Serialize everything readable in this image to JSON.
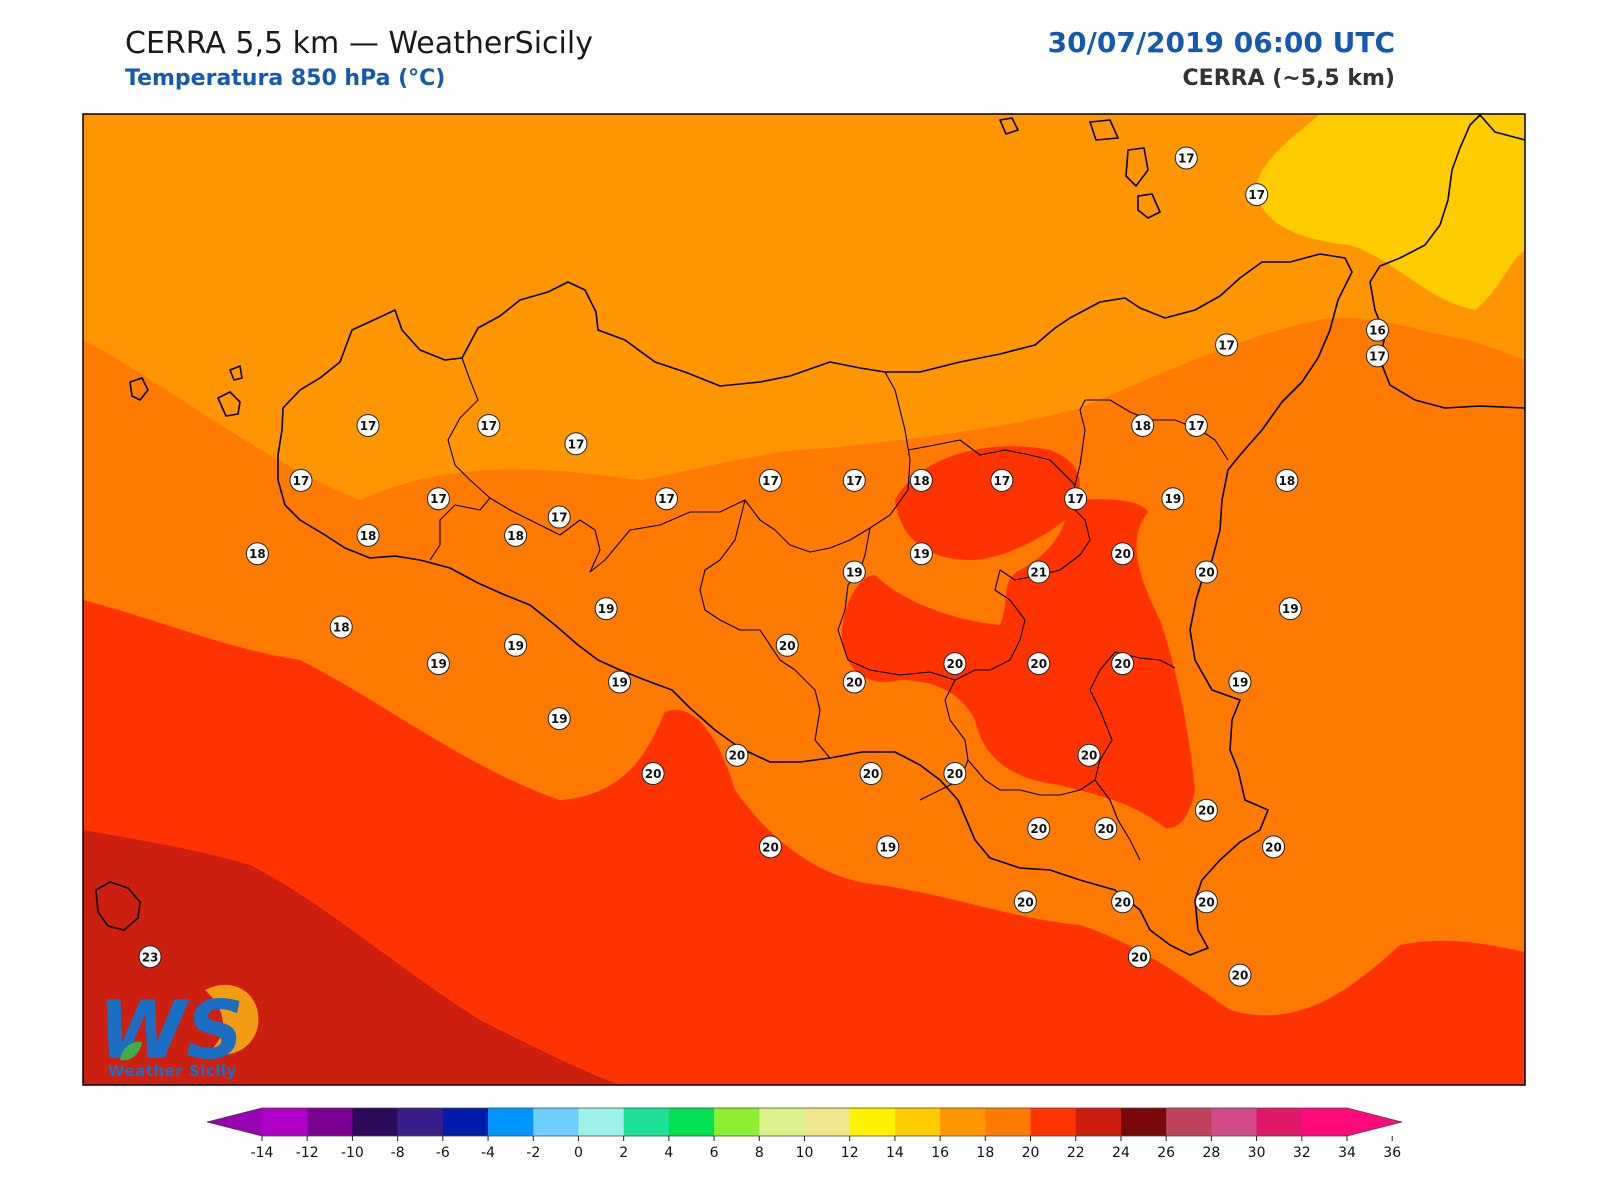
{
  "header": {
    "title": "CERRA 5,5 km — WeatherSicily",
    "subtitle": "Temperatura 850 hPa (°C)",
    "datetime": "30/07/2019 06:00 UTC",
    "model": "CERRA (~5,5 km)"
  },
  "logo": {
    "letters": "WS",
    "name": "Weather Sicily",
    "colors": {
      "blue": "#1a6fc4",
      "orange": "#f39c12",
      "green": "#3fae49"
    }
  },
  "fill_colors": {
    "t16_18": "#ffcc00",
    "t18_20": "#ff9500",
    "t20_22": "#ff7a00",
    "t22_24": "#ff3300",
    "t24_26": "#cc1f10"
  },
  "colorbar": {
    "ticks": [
      "-14",
      "-12",
      "-10",
      "-8",
      "-6",
      "-4",
      "-2",
      "0",
      "2",
      "4",
      "6",
      "8",
      "10",
      "12",
      "14",
      "16",
      "18",
      "20",
      "22",
      "24",
      "26",
      "28",
      "30",
      "32",
      "34",
      "36"
    ],
    "colors": [
      "#b000c8",
      "#7a0090",
      "#2c0a5a",
      "#3a1e8a",
      "#001ca8",
      "#0096ff",
      "#6ecfff",
      "#9ff0e8",
      "#1de096",
      "#00e050",
      "#8cf032",
      "#dcf08c",
      "#f0e68c",
      "#fff200",
      "#ffcc00",
      "#ff9500",
      "#ff7a00",
      "#ff3300",
      "#cc1f10",
      "#7a0a0a",
      "#c0425a",
      "#d24a8a",
      "#e0186a",
      "#ff0a78"
    ],
    "under_color": "#9a00b4",
    "over_color": "#ff0a78"
  },
  "points": [
    {
      "v": "17",
      "x": 15.04,
      "y": 38.98
    },
    {
      "v": "17",
      "x": 15.25,
      "y": 38.88
    },
    {
      "v": "16",
      "x": 15.61,
      "y": 38.51
    },
    {
      "v": "17",
      "x": 15.16,
      "y": 38.47
    },
    {
      "v": "17",
      "x": 15.61,
      "y": 38.44
    },
    {
      "v": "17",
      "x": 12.6,
      "y": 38.25
    },
    {
      "v": "17",
      "x": 12.96,
      "y": 38.25
    },
    {
      "v": "17",
      "x": 13.22,
      "y": 38.2
    },
    {
      "v": "18",
      "x": 14.91,
      "y": 38.25
    },
    {
      "v": "17",
      "x": 15.07,
      "y": 38.25
    },
    {
      "v": "17",
      "x": 12.4,
      "y": 38.1
    },
    {
      "v": "17",
      "x": 12.81,
      "y": 38.05
    },
    {
      "v": "17",
      "x": 13.49,
      "y": 38.05
    },
    {
      "v": "17",
      "x": 13.8,
      "y": 38.1
    },
    {
      "v": "17",
      "x": 14.05,
      "y": 38.1
    },
    {
      "v": "18",
      "x": 14.25,
      "y": 38.1
    },
    {
      "v": "17",
      "x": 14.49,
      "y": 38.1
    },
    {
      "v": "17",
      "x": 14.71,
      "y": 38.05
    },
    {
      "v": "19",
      "x": 15.0,
      "y": 38.05
    },
    {
      "v": "18",
      "x": 15.34,
      "y": 38.1
    },
    {
      "v": "17",
      "x": 13.17,
      "y": 38.0
    },
    {
      "v": "18",
      "x": 12.27,
      "y": 37.9
    },
    {
      "v": "18",
      "x": 12.6,
      "y": 37.95
    },
    {
      "v": "18",
      "x": 13.04,
      "y": 37.95
    },
    {
      "v": "19",
      "x": 14.05,
      "y": 37.85
    },
    {
      "v": "19",
      "x": 14.25,
      "y": 37.9
    },
    {
      "v": "21",
      "x": 14.6,
      "y": 37.85
    },
    {
      "v": "20",
      "x": 14.85,
      "y": 37.9
    },
    {
      "v": "20",
      "x": 15.1,
      "y": 37.85
    },
    {
      "v": "19",
      "x": 15.35,
      "y": 37.75
    },
    {
      "v": "19",
      "x": 13.31,
      "y": 37.75
    },
    {
      "v": "18",
      "x": 12.52,
      "y": 37.7
    },
    {
      "v": "19",
      "x": 13.04,
      "y": 37.65
    },
    {
      "v": "20",
      "x": 13.85,
      "y": 37.65
    },
    {
      "v": "19",
      "x": 12.81,
      "y": 37.6
    },
    {
      "v": "20",
      "x": 14.35,
      "y": 37.6
    },
    {
      "v": "20",
      "x": 14.6,
      "y": 37.6
    },
    {
      "v": "20",
      "x": 14.85,
      "y": 37.6
    },
    {
      "v": "19",
      "x": 15.2,
      "y": 37.55
    },
    {
      "v": "19",
      "x": 13.35,
      "y": 37.55
    },
    {
      "v": "20",
      "x": 14.05,
      "y": 37.55
    },
    {
      "v": "19",
      "x": 13.17,
      "y": 37.45
    },
    {
      "v": "20",
      "x": 13.7,
      "y": 37.35
    },
    {
      "v": "20",
      "x": 14.75,
      "y": 37.35
    },
    {
      "v": "20",
      "x": 13.45,
      "y": 37.3
    },
    {
      "v": "20",
      "x": 14.1,
      "y": 37.3
    },
    {
      "v": "20",
      "x": 14.35,
      "y": 37.3
    },
    {
      "v": "20",
      "x": 15.1,
      "y": 37.2
    },
    {
      "v": "20",
      "x": 14.6,
      "y": 37.15
    },
    {
      "v": "20",
      "x": 14.8,
      "y": 37.15
    },
    {
      "v": "20",
      "x": 13.8,
      "y": 37.1
    },
    {
      "v": "19",
      "x": 14.15,
      "y": 37.1
    },
    {
      "v": "20",
      "x": 15.3,
      "y": 37.1
    },
    {
      "v": "20",
      "x": 14.56,
      "y": 36.95
    },
    {
      "v": "20",
      "x": 14.85,
      "y": 36.95
    },
    {
      "v": "20",
      "x": 15.1,
      "y": 36.95
    },
    {
      "v": "20",
      "x": 14.9,
      "y": 36.8
    },
    {
      "v": "20",
      "x": 15.2,
      "y": 36.75
    },
    {
      "v": "23",
      "x": 11.95,
      "y": 36.8
    }
  ]
}
